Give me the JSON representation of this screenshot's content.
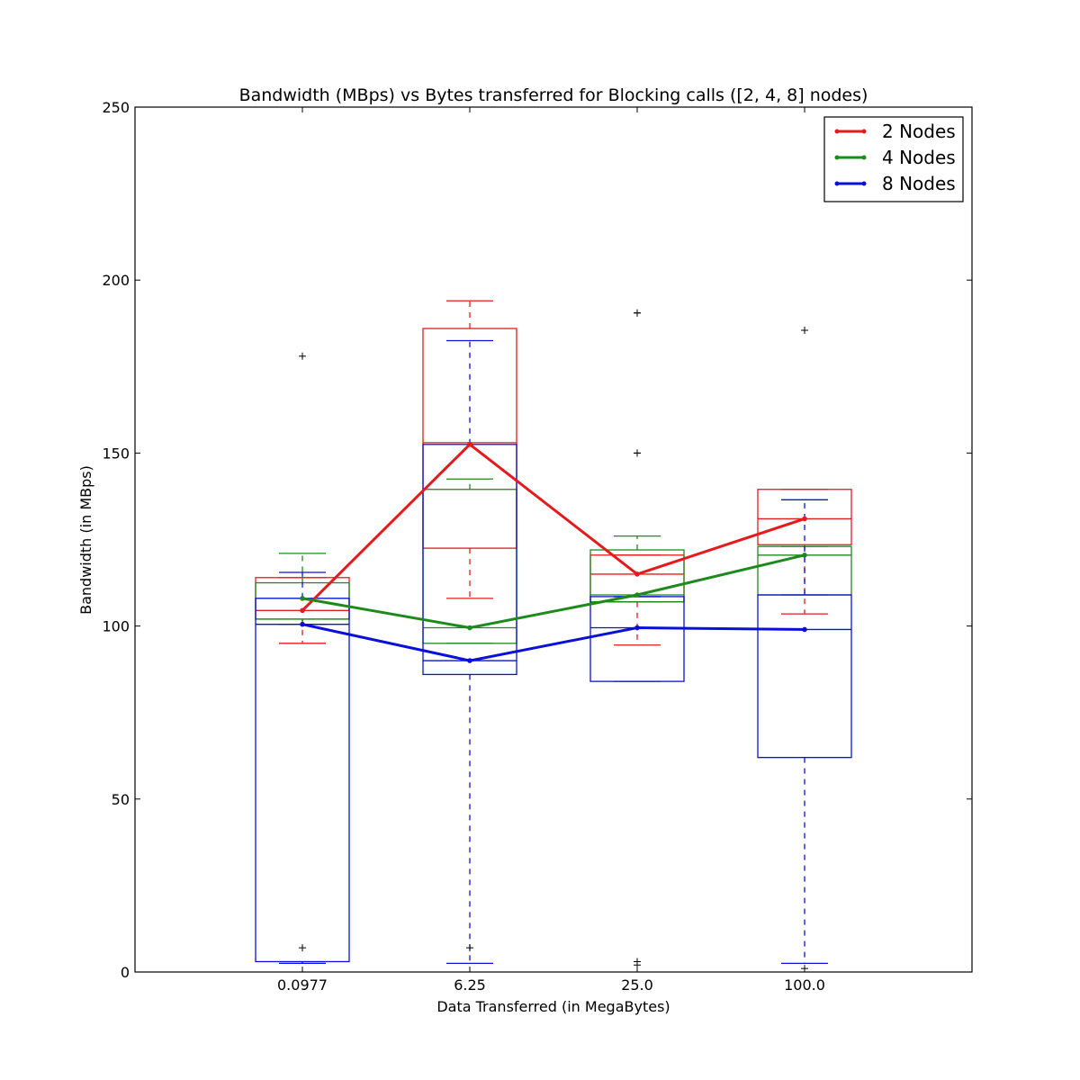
{
  "chart_data": {
    "type": "box",
    "title": "Bandwidth (MBps) vs Bytes transferred for Blocking calls ([2, 4, 8] nodes)",
    "xlabel": "Data Transferred (in MegaBytes)",
    "ylabel": "Bandwidth (in MBps)",
    "categories": [
      "0.0977",
      "6.25",
      "25.0",
      "100.0"
    ],
    "ylim": [
      0,
      250
    ],
    "yticks": [
      "0",
      "50",
      "100",
      "150",
      "200",
      "250"
    ],
    "grid": false,
    "legend_position": "top-right",
    "series": [
      {
        "name": "2 Nodes",
        "color": "#e41a1c",
        "line_values": [
          104.5,
          152.5,
          115,
          131
        ],
        "boxes": [
          {
            "whisker_low": 95,
            "q1": 102,
            "median": 104.5,
            "q3": 114,
            "whisker_high": 114,
            "outliers": []
          },
          {
            "whisker_low": 108,
            "q1": 122.5,
            "median": 153,
            "q3": 186,
            "whisker_high": 194,
            "outliers": []
          },
          {
            "whisker_low": 94.5,
            "q1": 107,
            "median": 115,
            "q3": 120.5,
            "whisker_high": 120.5,
            "outliers": [
              150,
              190.5
            ]
          },
          {
            "whisker_low": 103.5,
            "q1": 123.5,
            "median": 131,
            "q3": 139.5,
            "whisker_high": 139.5,
            "outliers": []
          }
        ]
      },
      {
        "name": "4 Nodes",
        "color": "#1e8a1e",
        "line_values": [
          108,
          99.5,
          109,
          120.5
        ],
        "boxes": [
          {
            "whisker_low": 100.5,
            "q1": 102,
            "median": 108,
            "q3": 112.5,
            "whisker_high": 121,
            "outliers": []
          },
          {
            "whisker_low": 95,
            "q1": 95,
            "median": 99.5,
            "q3": 139.5,
            "whisker_high": 142.5,
            "outliers": []
          },
          {
            "whisker_low": 107,
            "q1": 107,
            "median": 109,
            "q3": 122,
            "whisker_high": 126,
            "outliers": []
          },
          {
            "whisker_low": 109,
            "q1": 109,
            "median": 120.5,
            "q3": 123,
            "whisker_high": 123,
            "outliers": []
          }
        ]
      },
      {
        "name": "8 Nodes",
        "color": "#0a10d8",
        "line_values": [
          100.5,
          90,
          99.5,
          99
        ],
        "boxes": [
          {
            "whisker_low": 2.5,
            "q1": 3,
            "median": 100.5,
            "q3": 108,
            "whisker_high": 115.5,
            "outliers": [
              7,
              178
            ]
          },
          {
            "whisker_low": 2.5,
            "q1": 86,
            "median": 90,
            "q3": 152.5,
            "whisker_high": 182.5,
            "outliers": [
              7
            ]
          },
          {
            "whisker_low": 84,
            "q1": 84,
            "median": 99.5,
            "q3": 108.5,
            "whisker_high": 108.5,
            "outliers": [
              2,
              3,
              150,
              190.5
            ]
          },
          {
            "whisker_low": 2.5,
            "q1": 62,
            "median": 99,
            "q3": 109,
            "whisker_high": 136.5,
            "outliers": [
              1,
              185.5
            ]
          }
        ]
      }
    ]
  }
}
